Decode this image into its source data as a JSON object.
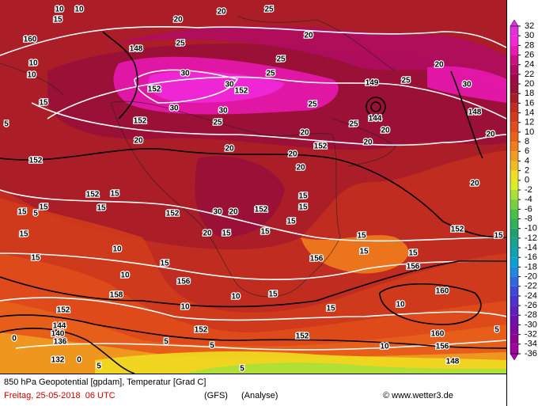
{
  "map": {
    "footer": {
      "title": "850 hPa Geopotential [gpdam], Temperatur [Grad C]",
      "date": "Freitag, 25-05-2018  06 UTC",
      "model": "(GFS)",
      "run": "(Analyse)",
      "credit": "© www.wetter3.de"
    },
    "legend": {
      "labels": [
        32,
        30,
        28,
        26,
        24,
        22,
        20,
        18,
        16,
        14,
        12,
        10,
        8,
        6,
        4,
        2,
        0,
        -2,
        -4,
        -6,
        -8,
        -10,
        -12,
        -14,
        -16,
        -18,
        -20,
        -22,
        -24,
        -26,
        -28,
        -30,
        -32,
        -34,
        -36
      ],
      "colors": [
        "#e030e0",
        "#f028d8",
        "#e818b0",
        "#c81080",
        "#b00c60",
        "#a00a48",
        "#981038",
        "#a81c28",
        "#c02c20",
        "#d03c1c",
        "#e04c1c",
        "#e8601c",
        "#f07c1c",
        "#f09c20",
        "#f0bc20",
        "#f0dc20",
        "#d8ec28",
        "#a8e038",
        "#78d040",
        "#48c048",
        "#30b058",
        "#20a070",
        "#18a090",
        "#10a0b0",
        "#10a0d0",
        "#2088e0",
        "#3068e0",
        "#4048d8",
        "#5030d0",
        "#6020c0",
        "#7010b0",
        "#8008a0",
        "#900090",
        "#a000a0",
        "#b000b8"
      ]
    },
    "contour_labels": [
      "10",
      "10",
      "15",
      "160",
      "10",
      "10",
      "15",
      "5",
      "148",
      "25",
      "20",
      "20",
      "25",
      "20",
      "25",
      "25",
      "30",
      "30",
      "30",
      "30",
      "152",
      "152",
      "25",
      "152",
      "20",
      "25",
      "20",
      "149",
      "144",
      "25",
      "20",
      "20",
      "25",
      "20",
      "30",
      "148",
      "20",
      "152",
      "20",
      "20",
      "20",
      "20",
      "152",
      "152",
      "15",
      "15",
      "5",
      "15",
      "15",
      "152",
      "30",
      "20",
      "152",
      "15",
      "15",
      "15",
      "20",
      "15",
      "15",
      "15",
      "152",
      "15",
      "10",
      "15",
      "156",
      "15",
      "15",
      "15",
      "156",
      "15",
      "10",
      "156",
      "158",
      "10",
      "15",
      "10",
      "160",
      "15",
      "10",
      "152",
      "144",
      "140",
      "136",
      "0",
      "152",
      "5",
      "5",
      "152",
      "10",
      "160",
      "156",
      "0",
      "132",
      "5",
      "5",
      "148",
      "5"
    ]
  }
}
